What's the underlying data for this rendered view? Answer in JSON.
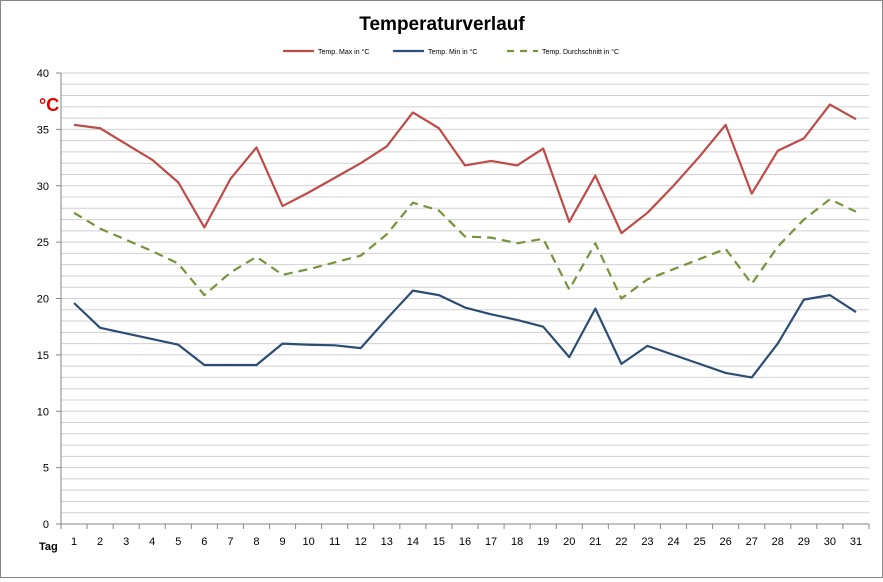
{
  "chart_data": {
    "type": "line",
    "title": "Temperaturverlauf",
    "xlabel": "Tag",
    "ylabel": "°C",
    "ylim": [
      0,
      40
    ],
    "yticks": [
      0,
      5,
      10,
      15,
      20,
      25,
      30,
      35,
      40
    ],
    "grid": "horizontal, every 1 unit",
    "legend_position": "top",
    "x": [
      1,
      2,
      3,
      4,
      5,
      6,
      7,
      8,
      9,
      10,
      11,
      12,
      13,
      14,
      15,
      16,
      17,
      18,
      19,
      20,
      21,
      22,
      23,
      24,
      25,
      26,
      27,
      28,
      29,
      30,
      31
    ],
    "series": [
      {
        "name": "Temp. Max in °C",
        "color": "#be4b48",
        "dash": false,
        "values": [
          35.4,
          35.1,
          33.7,
          32.3,
          30.3,
          26.3,
          30.6,
          33.4,
          28.2,
          29.4,
          30.7,
          32.0,
          33.5,
          36.5,
          35.1,
          31.8,
          32.2,
          31.8,
          33.3,
          26.8,
          30.9,
          25.8,
          27.6,
          30.0,
          32.6,
          35.4,
          29.3,
          33.1,
          34.2,
          37.2,
          35.9
        ]
      },
      {
        "name": "Temp. Min in °C",
        "color": "#2c4d75",
        "dash": false,
        "values": [
          19.6,
          17.4,
          16.9,
          16.4,
          15.9,
          14.1,
          14.1,
          14.1,
          16.0,
          15.9,
          15.85,
          15.6,
          18.2,
          20.7,
          20.3,
          19.2,
          18.6,
          18.1,
          17.5,
          14.8,
          19.1,
          14.2,
          15.8,
          15.0,
          14.2,
          13.4,
          13.0,
          16.0,
          19.9,
          20.3,
          18.8
        ]
      },
      {
        "name": "Temp. Durchschnitt in °C",
        "color": "#77933c",
        "dash": true,
        "values": [
          27.6,
          26.2,
          25.2,
          24.2,
          23.1,
          20.3,
          22.3,
          23.7,
          22.1,
          22.6,
          23.2,
          23.8,
          25.7,
          28.5,
          27.8,
          25.5,
          25.4,
          24.9,
          25.3,
          20.8,
          24.9,
          20.0,
          21.7,
          22.6,
          23.5,
          24.4,
          21.3,
          24.6,
          27.0,
          28.8,
          27.7
        ]
      }
    ]
  }
}
